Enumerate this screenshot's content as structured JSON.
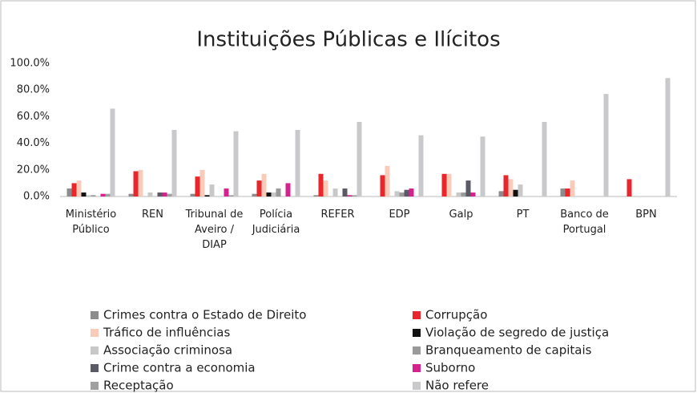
{
  "chart_data": {
    "type": "bar",
    "title": "Instituições Públicas e Ilícitos",
    "categories": [
      "Ministério Público",
      "REN",
      "Tribunal de Aveiro / DIAP",
      "Polícia Judiciária",
      "REFER",
      "EDP",
      "Galp",
      "PT",
      "Banco de Portugal",
      "BPN"
    ],
    "series": [
      {
        "name": "Crimes contra o Estado de Direito",
        "color": "#8c8c8c",
        "values": [
          6,
          2,
          2,
          2,
          1,
          0,
          0,
          4,
          6,
          0
        ]
      },
      {
        "name": "Corrupção",
        "color": "#e8262b",
        "values": [
          10,
          19,
          15,
          12,
          17,
          16,
          17,
          16,
          6,
          13
        ]
      },
      {
        "name": "Tráfico de influências",
        "color": "#f9cbb8",
        "values": [
          12,
          20,
          20,
          17,
          12,
          23,
          17,
          13,
          12,
          0
        ]
      },
      {
        "name": "Violação de segredo de justiça",
        "color": "#111111",
        "values": [
          3,
          0,
          1,
          3,
          0,
          0,
          0,
          5,
          0,
          0
        ]
      },
      {
        "name": "Associação criminosa",
        "color": "#c8c8c8",
        "values": [
          1,
          3,
          9,
          3,
          6,
          4,
          3,
          9,
          0,
          0
        ]
      },
      {
        "name": "Branqueamento de capitais",
        "color": "#9a9a9a",
        "values": [
          1,
          0,
          0,
          6,
          0,
          3,
          3,
          0,
          0,
          0
        ]
      },
      {
        "name": "Crime contra a economia",
        "color": "#5a5a64",
        "values": [
          0,
          3,
          0,
          0,
          6,
          5,
          12,
          0,
          0,
          0
        ]
      },
      {
        "name": "Suborno",
        "color": "#d6228f",
        "values": [
          2,
          3,
          6,
          10,
          1,
          6,
          3,
          0,
          0,
          0
        ]
      },
      {
        "name": "Receptação",
        "color": "#a0a0a0",
        "values": [
          2,
          2,
          1,
          0,
          1,
          0,
          0,
          0,
          0,
          0
        ]
      },
      {
        "name": "Não refere",
        "color": "#c9c9cc",
        "values": [
          66,
          50,
          49,
          50,
          56,
          46,
          45,
          56,
          77,
          89
        ]
      }
    ],
    "ylim": [
      0,
      100
    ],
    "yticks": [
      {
        "value": 0,
        "label": "0.0%"
      },
      {
        "value": 20,
        "label": "20.0%"
      },
      {
        "value": 40,
        "label": "40.0%"
      },
      {
        "value": 60,
        "label": "60.0%"
      },
      {
        "value": 80,
        "label": "80.0%"
      },
      {
        "value": 100,
        "label": "100.0%"
      }
    ],
    "grid": false
  }
}
